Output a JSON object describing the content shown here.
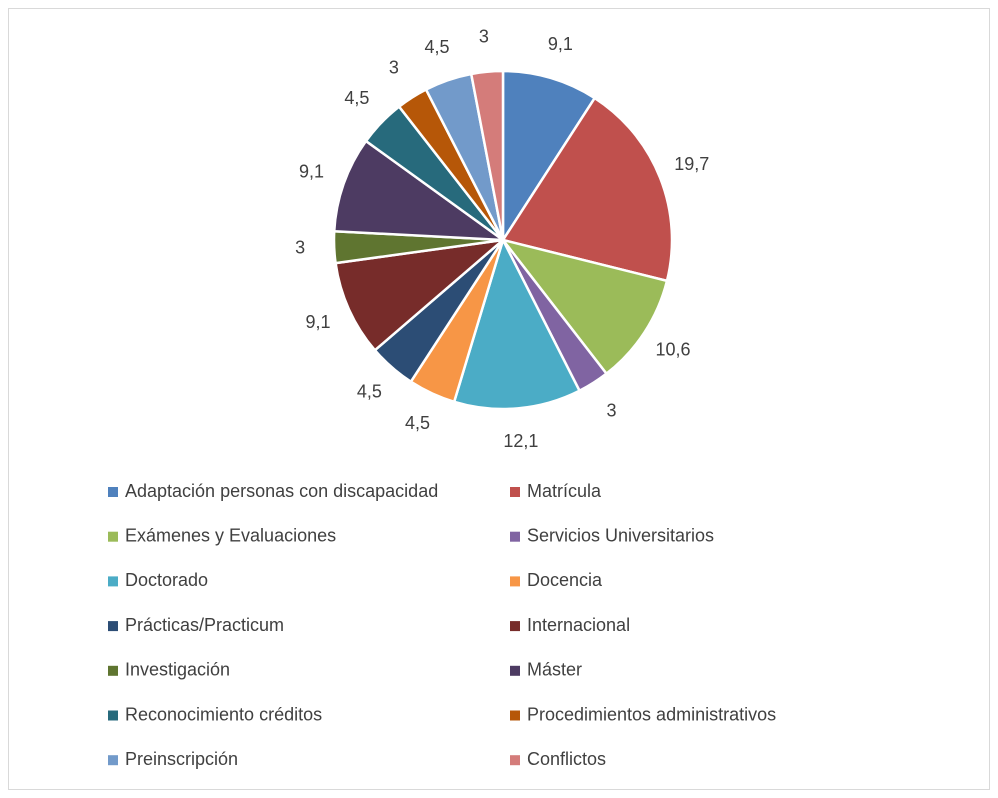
{
  "chart_data": {
    "type": "pie",
    "categories": [
      "Adaptación personas con discapacidad",
      "Matrícula",
      "Exámenes y Evaluaciones",
      "Servicios Universitarios",
      "Doctorado",
      "Docencia",
      "Prácticas/Practicum",
      "Internacional",
      "Investigación",
      "Máster",
      "Reconocimiento créditos",
      "Procedimientos administrativos",
      "Preinscripción",
      "Conflictos"
    ],
    "values": [
      9.1,
      19.7,
      10.6,
      3,
      12.1,
      4.5,
      4.5,
      9.1,
      3,
      9.1,
      4.5,
      3,
      4.5,
      3
    ],
    "value_labels": [
      "9,1",
      "19,7",
      "10,6",
      "3",
      "12,1",
      "4,5",
      "4,5",
      "9,1",
      "3",
      "9,1",
      "4,5",
      "3",
      "4,5",
      "3"
    ],
    "colors": [
      "#4f81bd",
      "#c0504d",
      "#9bbb59",
      "#8064a2",
      "#4bacc6",
      "#f79646",
      "#2c4d75",
      "#772c2a",
      "#5f7530",
      "#4d3b62",
      "#276a7c",
      "#b65708",
      "#729aca",
      "#d47c7a"
    ],
    "legend": "bottom"
  }
}
